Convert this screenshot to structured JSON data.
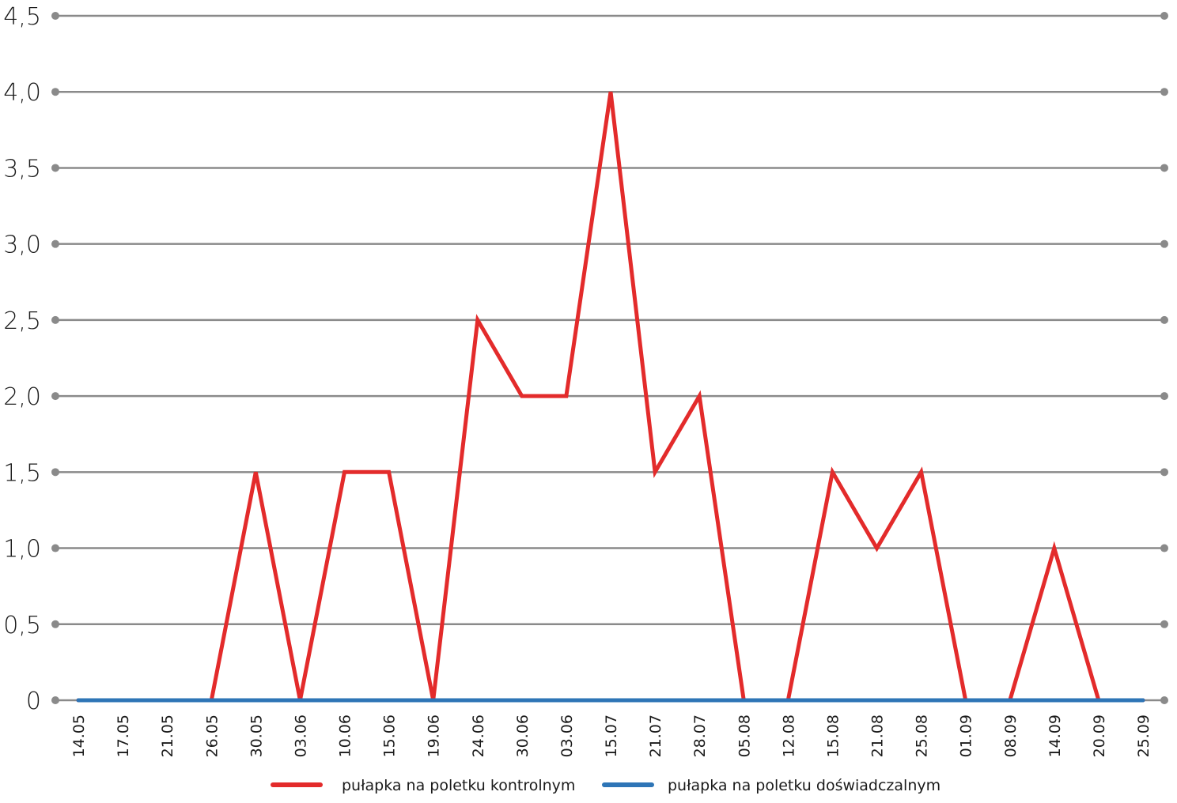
{
  "chart_data": {
    "type": "line",
    "categories": [
      "14.05",
      "17.05",
      "21.05",
      "26.05",
      "30.05",
      "03.06",
      "10.06",
      "15.06",
      "19.06",
      "24.06",
      "30.06",
      "03.06",
      "15.07",
      "21.07",
      "28.07",
      "05.08",
      "12.08",
      "15.08",
      "21.08",
      "25.08",
      "01.09",
      "08.09",
      "14.09",
      "20.09",
      "25.09"
    ],
    "series": [
      {
        "name": "pułapka na poletku kontrolnym",
        "color": "#e32b2b",
        "values": [
          0,
          0,
          0,
          0,
          1.5,
          0,
          1.5,
          1.5,
          0,
          2.5,
          2.0,
          2.0,
          4.0,
          1.5,
          2.0,
          0,
          0,
          1.5,
          1.0,
          1.5,
          0,
          0,
          1.0,
          0,
          0
        ]
      },
      {
        "name": "pułapka na poletku doświadczalnym",
        "color": "#2e75b6",
        "values": [
          0,
          0,
          0,
          0,
          0,
          0,
          0,
          0,
          0,
          0,
          0,
          0,
          0,
          0,
          0,
          0,
          0,
          0,
          0,
          0,
          0,
          0,
          0,
          0,
          0
        ]
      }
    ],
    "yticks": [
      "0",
      "0,5",
      "1,0",
      "1,5",
      "2,0",
      "2,5",
      "3,0",
      "3,5",
      "4,0",
      "4,5"
    ],
    "ylim": [
      0,
      4.5
    ],
    "grid": true,
    "legend_position": "bottom",
    "title": "",
    "xlabel": "",
    "ylabel": ""
  }
}
